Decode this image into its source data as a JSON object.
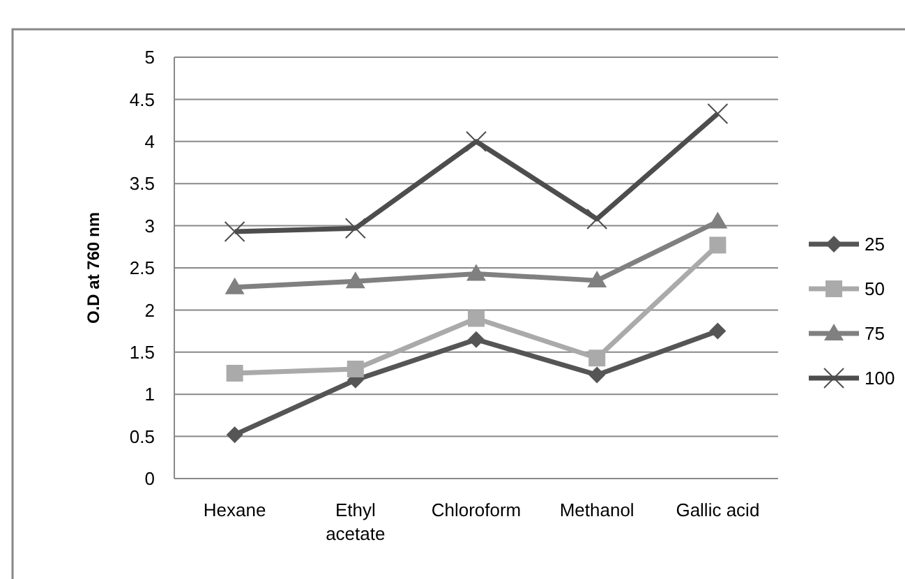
{
  "chart_data": {
    "type": "line",
    "ylabel": "O.D at  760 nm",
    "categories": [
      "Hexane",
      "Ethyl acetate",
      "Chloroform",
      "Methanol",
      "Gallic acid"
    ],
    "series": [
      {
        "name": "25",
        "color": "#555555",
        "marker": "diamond",
        "values": [
          0.52,
          1.17,
          1.65,
          1.23,
          1.75
        ]
      },
      {
        "name": "50",
        "color": "#aaaaaa",
        "marker": "square",
        "values": [
          1.25,
          1.3,
          1.9,
          1.43,
          2.77
        ]
      },
      {
        "name": "75",
        "color": "#808080",
        "marker": "triangle",
        "values": [
          2.27,
          2.34,
          2.43,
          2.35,
          3.05
        ]
      },
      {
        "name": "100",
        "color": "#4d4d4d",
        "marker": "cross",
        "values": [
          2.93,
          2.97,
          4.0,
          3.08,
          4.33
        ]
      }
    ],
    "ylim": [
      0,
      5
    ],
    "yticks": [
      0,
      0.5,
      1,
      1.5,
      2,
      2.5,
      3,
      3.5,
      4,
      4.5,
      5
    ],
    "grid": "y",
    "legend": "right",
    "line_style": "solid"
  }
}
